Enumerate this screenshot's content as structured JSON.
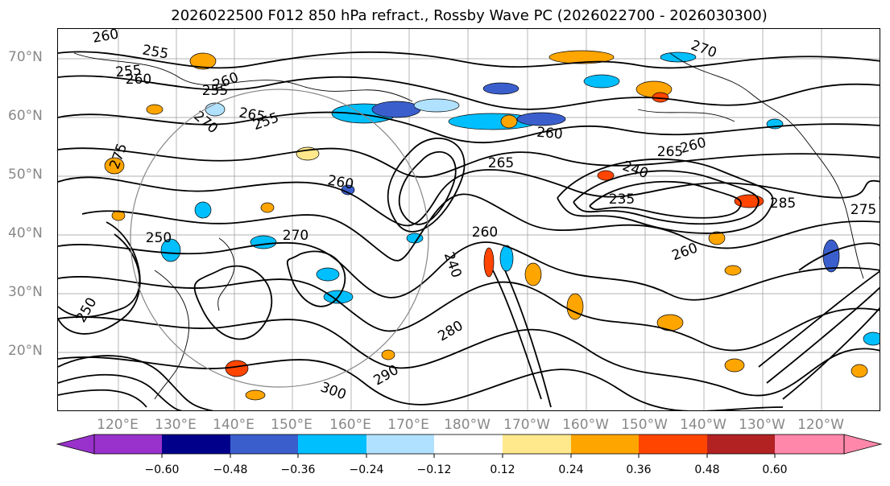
{
  "title": "2026022500 F012 850 hPa refract., Rossby Wave PC (2026022700 - 2026030300)",
  "latitude_labels": [
    "70°N",
    "60°N",
    "50°N",
    "40°N",
    "30°N",
    "20°N"
  ],
  "longitude_labels": [
    "120°E",
    "130°E",
    "140°E",
    "150°E",
    "160°E",
    "170°E",
    "180°W",
    "170°W",
    "160°W",
    "150°W",
    "140°W",
    "130°W",
    "120°W"
  ],
  "contour_labels": [
    "260",
    "255",
    "255",
    "260",
    "255",
    "260",
    "270",
    "265",
    "275",
    "260",
    "265",
    "260",
    "240",
    "235",
    "260",
    "255",
    "250",
    "250",
    "260",
    "240",
    "270",
    "280",
    "290",
    "300",
    "285",
    "260",
    "265",
    "270",
    "275"
  ],
  "colors": {
    "coastline": "#000000",
    "grid": "#999999",
    "negative_fill": "#1e90ff",
    "positive_fill": "#ffa500"
  },
  "chart_data": {
    "type": "map",
    "title": "2026022500 F012 850 hPa refract., Rossby Wave PC (2026022700 - 2026030300)",
    "lat_range": [
      10,
      75
    ],
    "lon_ticks": [
      "120°E",
      "130°E",
      "140°E",
      "150°E",
      "160°E",
      "170°E",
      "180°W",
      "170°W",
      "160°W",
      "150°W",
      "140°W",
      "130°W",
      "120°W"
    ],
    "lat_ticks": [
      "70°N",
      "60°N",
      "50°N",
      "40°N",
      "30°N",
      "20°N"
    ],
    "colorbar": {
      "extend": "both",
      "ticks": [
        -0.6,
        -0.48,
        -0.36,
        -0.24,
        -0.12,
        0.12,
        0.24,
        0.36,
        0.48,
        0.6
      ],
      "tick_labels": [
        "−0.60",
        "−0.48",
        "−0.36",
        "−0.24",
        "−0.12",
        "0.12",
        "0.24",
        "0.36",
        "0.48",
        "0.60"
      ],
      "colors": [
        "#9932cc",
        "#00008b",
        "#3a5fcd",
        "#00bfff",
        "#b0e2ff",
        "#ffffff",
        "#ffe98c",
        "#ffa500",
        "#ff4500",
        "#b22222",
        "#ff88aa"
      ]
    },
    "contour_levels": [
      235,
      240,
      245,
      250,
      255,
      260,
      265,
      270,
      275,
      280,
      285,
      290,
      295,
      300
    ]
  }
}
